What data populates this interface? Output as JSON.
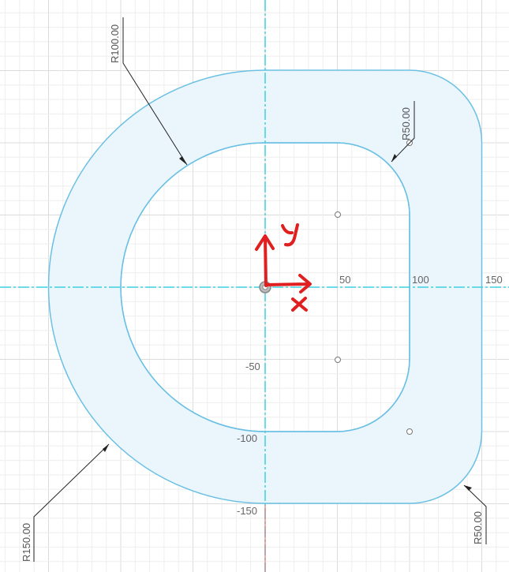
{
  "axis_labels": {
    "x_50": "50",
    "x_100": "100",
    "x_150": "150",
    "y_neg50": "-50",
    "y_neg100": "-100",
    "y_neg150": "-150"
  },
  "dimensions": {
    "r100": "R100.00",
    "r50_top": "R50.00",
    "r150": "R150.00",
    "r50_bottom": "R50.00"
  },
  "axis_annotation": {
    "x_letter": "x",
    "y_letter": "y"
  },
  "colors": {
    "profile_stroke": "#6cc0e4",
    "profile_fill": "#eaf5fc",
    "axis": "#3fd0e0",
    "grid_minor": "#eeeeee",
    "grid_major": "#dcdcdc",
    "annotation": "#e02020"
  }
}
